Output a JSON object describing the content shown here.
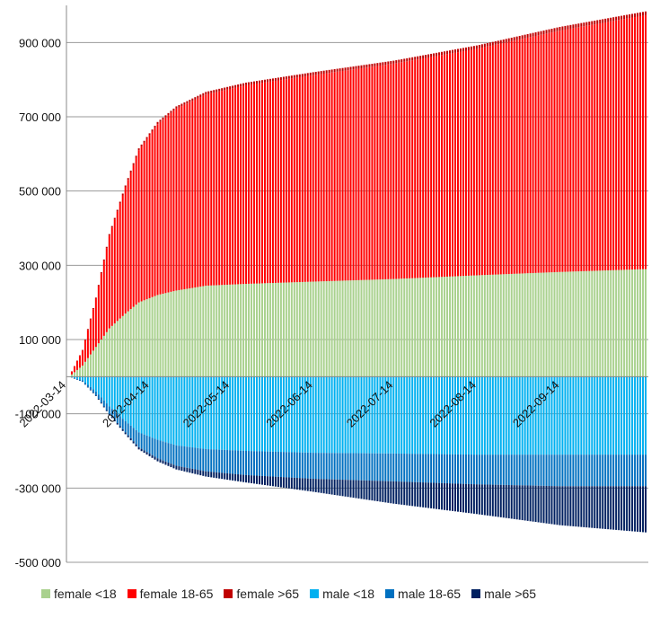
{
  "chart_data": {
    "type": "bar",
    "stacked": true,
    "ylim": [
      -500000,
      1000000
    ],
    "y_ticks": [
      {
        "value": 900000,
        "label": "900 000"
      },
      {
        "value": 700000,
        "label": "700 000"
      },
      {
        "value": 500000,
        "label": "500 000"
      },
      {
        "value": 300000,
        "label": "300 000"
      },
      {
        "value": 100000,
        "label": "100 000"
      },
      {
        "value": -100000,
        "label": "-100 000"
      },
      {
        "value": -300000,
        "label": "-300 000"
      },
      {
        "value": -500000,
        "label": "-500 000"
      }
    ],
    "x_range": [
      "2022-03-14",
      "2022-10-17"
    ],
    "x_tick_labels": [
      "2022-03-14",
      "2022-04-14",
      "2022-05-14",
      "2022-06-14",
      "2022-07-14",
      "2022-08-14",
      "2022-09-14"
    ],
    "grid": "horizontal",
    "legend_position": "bottom",
    "series": [
      {
        "name": "female <18",
        "color": "#a9d18e",
        "direction": "up",
        "points": [
          [
            "2022-03-15",
            0
          ],
          [
            "2022-03-20",
            30000
          ],
          [
            "2022-03-25",
            80000
          ],
          [
            "2022-03-30",
            130000
          ],
          [
            "2022-04-05",
            170000
          ],
          [
            "2022-04-10",
            200000
          ],
          [
            "2022-04-17",
            220000
          ],
          [
            "2022-04-24",
            232000
          ],
          [
            "2022-05-05",
            245000
          ],
          [
            "2022-05-20",
            250000
          ],
          [
            "2022-06-14",
            256000
          ],
          [
            "2022-07-14",
            263000
          ],
          [
            "2022-08-14",
            273000
          ],
          [
            "2022-09-14",
            282000
          ],
          [
            "2022-10-17",
            290000
          ]
        ]
      },
      {
        "name": "female 18-65",
        "color": "#ff0000",
        "direction": "up",
        "points": [
          [
            "2022-03-15",
            0
          ],
          [
            "2022-03-20",
            40000
          ],
          [
            "2022-03-25",
            130000
          ],
          [
            "2022-03-30",
            250000
          ],
          [
            "2022-04-05",
            340000
          ],
          [
            "2022-04-10",
            410000
          ],
          [
            "2022-04-17",
            460000
          ],
          [
            "2022-04-24",
            490000
          ],
          [
            "2022-05-05",
            515000
          ],
          [
            "2022-05-20",
            535000
          ],
          [
            "2022-06-14",
            556000
          ],
          [
            "2022-07-14",
            580000
          ],
          [
            "2022-08-14",
            610000
          ],
          [
            "2022-09-14",
            650000
          ],
          [
            "2022-10-17",
            685000
          ]
        ]
      },
      {
        "name": "female >65",
        "color": "#c00000",
        "direction": "up",
        "points": [
          [
            "2022-03-15",
            0
          ],
          [
            "2022-03-20",
            2000
          ],
          [
            "2022-03-25",
            3000
          ],
          [
            "2022-03-30",
            4000
          ],
          [
            "2022-04-05",
            5000
          ],
          [
            "2022-04-10",
            5000
          ],
          [
            "2022-04-17",
            6000
          ],
          [
            "2022-04-24",
            6000
          ],
          [
            "2022-05-05",
            7000
          ],
          [
            "2022-05-20",
            7000
          ],
          [
            "2022-06-14",
            8000
          ],
          [
            "2022-07-14",
            8000
          ],
          [
            "2022-08-14",
            9000
          ],
          [
            "2022-09-14",
            10000
          ],
          [
            "2022-10-17",
            10000
          ]
        ]
      },
      {
        "name": "male <18",
        "color": "#00b0f0",
        "direction": "down",
        "points": [
          [
            "2022-03-15",
            0
          ],
          [
            "2022-03-20",
            10000
          ],
          [
            "2022-03-25",
            40000
          ],
          [
            "2022-03-30",
            80000
          ],
          [
            "2022-04-05",
            120000
          ],
          [
            "2022-04-10",
            150000
          ],
          [
            "2022-04-17",
            170000
          ],
          [
            "2022-04-24",
            185000
          ],
          [
            "2022-05-05",
            195000
          ],
          [
            "2022-05-20",
            200000
          ],
          [
            "2022-06-14",
            205000
          ],
          [
            "2022-07-14",
            207000
          ],
          [
            "2022-08-14",
            210000
          ],
          [
            "2022-09-14",
            210000
          ],
          [
            "2022-10-17",
            210000
          ]
        ]
      },
      {
        "name": "male 18-65",
        "color": "#0070c0",
        "direction": "down",
        "points": [
          [
            "2022-03-15",
            0
          ],
          [
            "2022-03-20",
            3000
          ],
          [
            "2022-03-25",
            10000
          ],
          [
            "2022-03-30",
            20000
          ],
          [
            "2022-04-05",
            30000
          ],
          [
            "2022-04-10",
            40000
          ],
          [
            "2022-04-17",
            50000
          ],
          [
            "2022-04-24",
            55000
          ],
          [
            "2022-05-05",
            60000
          ],
          [
            "2022-05-20",
            65000
          ],
          [
            "2022-06-14",
            70000
          ],
          [
            "2022-07-14",
            75000
          ],
          [
            "2022-08-14",
            80000
          ],
          [
            "2022-09-14",
            85000
          ],
          [
            "2022-10-17",
            85000
          ]
        ]
      },
      {
        "name": "male >65",
        "color": "#002060",
        "direction": "down",
        "points": [
          [
            "2022-03-15",
            0
          ],
          [
            "2022-03-20",
            1000
          ],
          [
            "2022-03-25",
            2000
          ],
          [
            "2022-03-30",
            3000
          ],
          [
            "2022-04-05",
            5000
          ],
          [
            "2022-04-10",
            6000
          ],
          [
            "2022-04-17",
            8000
          ],
          [
            "2022-04-24",
            10000
          ],
          [
            "2022-05-05",
            14000
          ],
          [
            "2022-05-20",
            20000
          ],
          [
            "2022-06-14",
            35000
          ],
          [
            "2022-07-14",
            60000
          ],
          [
            "2022-08-14",
            80000
          ],
          [
            "2022-09-14",
            105000
          ],
          [
            "2022-10-17",
            125000
          ]
        ]
      }
    ]
  }
}
